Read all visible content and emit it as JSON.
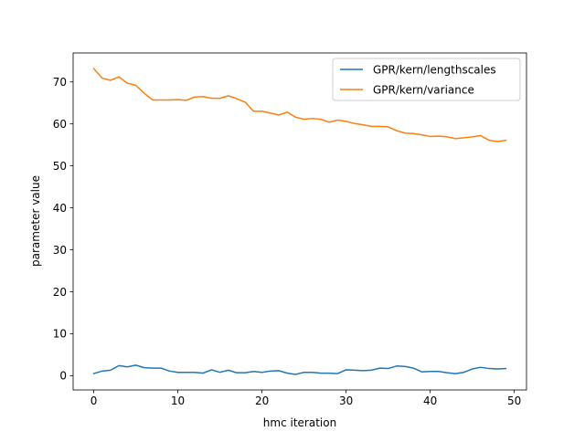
{
  "chart_data": {
    "type": "line",
    "title": "",
    "xlabel": "hmc iteration",
    "ylabel": "parameter value",
    "xlim": [
      -2.45,
      51.45
    ],
    "ylim": [
      -3.4,
      76.9
    ],
    "xticks": [
      0,
      10,
      20,
      30,
      40,
      50
    ],
    "yticks": [
      0,
      10,
      20,
      30,
      40,
      50,
      60,
      70
    ],
    "grid": false,
    "legend_position": "top-right",
    "series": [
      {
        "name": "GPR/kern/lengthscales",
        "color": "#1f77b4",
        "x": [
          0,
          1,
          2,
          3,
          4,
          5,
          6,
          7,
          8,
          9,
          10,
          11,
          12,
          13,
          14,
          15,
          16,
          17,
          18,
          19,
          20,
          21,
          22,
          23,
          24,
          25,
          26,
          27,
          28,
          29,
          30,
          31,
          32,
          33,
          34,
          35,
          36,
          37,
          38,
          39,
          40,
          41,
          42,
          43,
          44,
          45,
          46,
          47,
          48,
          49
        ],
        "values": [
          0.5,
          1.1,
          1.3,
          2.4,
          2.1,
          2.5,
          1.9,
          1.8,
          1.8,
          1.1,
          0.8,
          0.8,
          0.8,
          0.6,
          1.4,
          0.8,
          1.3,
          0.7,
          0.7,
          1.0,
          0.8,
          1.1,
          1.2,
          0.6,
          0.3,
          0.8,
          0.8,
          0.6,
          0.6,
          0.5,
          1.4,
          1.3,
          1.2,
          1.3,
          1.8,
          1.7,
          2.3,
          2.2,
          1.8,
          0.9,
          1.0,
          1.0,
          0.7,
          0.5,
          0.8,
          1.6,
          2.0,
          1.7,
          1.6,
          1.7
        ]
      },
      {
        "name": "GPR/kern/variance",
        "color": "#ff7f0e",
        "x": [
          0,
          1,
          2,
          3,
          4,
          5,
          6,
          7,
          8,
          9,
          10,
          11,
          12,
          13,
          14,
          15,
          16,
          17,
          18,
          19,
          20,
          21,
          22,
          23,
          24,
          25,
          26,
          27,
          28,
          29,
          30,
          31,
          32,
          33,
          34,
          35,
          36,
          37,
          38,
          39,
          40,
          41,
          42,
          43,
          44,
          45,
          46,
          47,
          48,
          49
        ],
        "values": [
          73.2,
          70.9,
          70.4,
          71.2,
          69.7,
          69.2,
          67.3,
          65.7,
          65.7,
          65.7,
          65.8,
          65.6,
          66.4,
          66.5,
          66.1,
          66.1,
          66.7,
          66.0,
          65.2,
          63.0,
          63.0,
          62.6,
          62.1,
          62.8,
          61.6,
          61.1,
          61.3,
          61.1,
          60.4,
          60.9,
          60.6,
          60.1,
          59.8,
          59.4,
          59.4,
          59.3,
          58.4,
          57.8,
          57.7,
          57.4,
          57.0,
          57.1,
          56.9,
          56.5,
          56.7,
          56.9,
          57.2,
          56.1,
          55.8,
          56.1
        ]
      }
    ]
  }
}
